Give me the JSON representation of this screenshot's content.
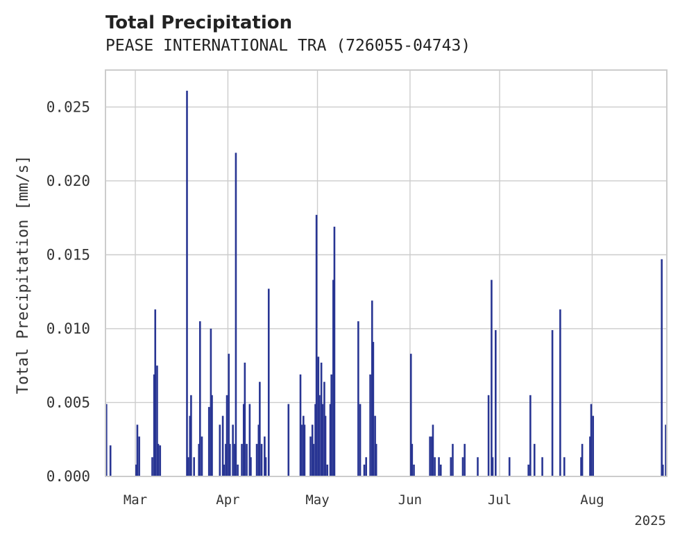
{
  "chart_data": {
    "type": "bar",
    "title": "Total Precipitation",
    "subtitle": "PEASE INTERNATIONAL TRA (726055-04743)",
    "ylabel": "Total Precipitation [mm/s]",
    "xlabel": "",
    "year_label": "2025",
    "x_range": [
      "2025-02-19",
      "2025-08-26"
    ],
    "ylim": [
      0,
      0.0275
    ],
    "grid": true,
    "series_color": "#283593",
    "yticks": [
      {
        "value": 0.0,
        "label": "0.000"
      },
      {
        "value": 0.005,
        "label": "0.005"
      },
      {
        "value": 0.01,
        "label": "0.010"
      },
      {
        "value": 0.015,
        "label": "0.015"
      },
      {
        "value": 0.02,
        "label": "0.020"
      },
      {
        "value": 0.025,
        "label": "0.025"
      }
    ],
    "xticks": [
      {
        "date": "2025-03-01",
        "label": "Mar"
      },
      {
        "date": "2025-04-01",
        "label": "Apr"
      },
      {
        "date": "2025-05-01",
        "label": "May"
      },
      {
        "date": "2025-06-01",
        "label": "Jun"
      },
      {
        "date": "2025-07-01",
        "label": "Jul"
      },
      {
        "date": "2025-08-01",
        "label": "Aug"
      }
    ],
    "series": [
      {
        "points": [
          [
            "2025-02-19",
            0.0049
          ],
          [
            "2025-02-20",
            0.0021
          ],
          [
            "2025-03-01",
            0.0008
          ],
          [
            "2025-03-01",
            0.0035
          ],
          [
            "2025-03-02",
            0.0027
          ],
          [
            "2025-03-06",
            0.0013
          ],
          [
            "2025-03-07",
            0.0069
          ],
          [
            "2025-03-07",
            0.0113
          ],
          [
            "2025-03-08",
            0.0075
          ],
          [
            "2025-03-08",
            0.0022
          ],
          [
            "2025-03-09",
            0.0021
          ],
          [
            "2025-03-18",
            0.0013
          ],
          [
            "2025-03-18",
            0.0261
          ],
          [
            "2025-03-19",
            0.0055
          ],
          [
            "2025-03-19",
            0.0041
          ],
          [
            "2025-03-20",
            0.0013
          ],
          [
            "2025-03-22",
            0.0022
          ],
          [
            "2025-03-22",
            0.0105
          ],
          [
            "2025-03-23",
            0.0027
          ],
          [
            "2025-03-25",
            0.0047
          ],
          [
            "2025-03-26",
            0.01
          ],
          [
            "2025-03-26",
            0.0055
          ],
          [
            "2025-03-29",
            0.0035
          ],
          [
            "2025-03-30",
            0.0008
          ],
          [
            "2025-03-30",
            0.0041
          ],
          [
            "2025-03-31",
            0.0055
          ],
          [
            "2025-03-31",
            0.0022
          ],
          [
            "2025-04-01",
            0.0022
          ],
          [
            "2025-04-01",
            0.0083
          ],
          [
            "2025-04-02",
            0.0035
          ],
          [
            "2025-04-03",
            0.0022
          ],
          [
            "2025-04-03",
            0.0219
          ],
          [
            "2025-04-04",
            0.0008
          ],
          [
            "2025-04-05",
            0.0022
          ],
          [
            "2025-04-06",
            0.0049
          ],
          [
            "2025-04-06",
            0.0077
          ],
          [
            "2025-04-07",
            0.0022
          ],
          [
            "2025-04-08",
            0.0013
          ],
          [
            "2025-04-08",
            0.0049
          ],
          [
            "2025-04-10",
            0.0022
          ],
          [
            "2025-04-11",
            0.0035
          ],
          [
            "2025-04-11",
            0.0064
          ],
          [
            "2025-04-12",
            0.0022
          ],
          [
            "2025-04-13",
            0.0013
          ],
          [
            "2025-04-13",
            0.0027
          ],
          [
            "2025-04-14",
            0.0127
          ],
          [
            "2025-04-21",
            0.0049
          ],
          [
            "2025-04-25",
            0.0035
          ],
          [
            "2025-04-25",
            0.0069
          ],
          [
            "2025-04-26",
            0.0035
          ],
          [
            "2025-04-26",
            0.0041
          ],
          [
            "2025-04-28",
            0.0027
          ],
          [
            "2025-04-29",
            0.0035
          ],
          [
            "2025-04-29",
            0.0022
          ],
          [
            "2025-04-30",
            0.0049
          ],
          [
            "2025-04-30",
            0.0177
          ],
          [
            "2025-05-01",
            0.0081
          ],
          [
            "2025-05-01",
            0.0055
          ],
          [
            "2025-05-02",
            0.0077
          ],
          [
            "2025-05-02",
            0.0049
          ],
          [
            "2025-05-03",
            0.0064
          ],
          [
            "2025-05-03",
            0.0041
          ],
          [
            "2025-05-04",
            0.0008
          ],
          [
            "2025-05-05",
            0.0069
          ],
          [
            "2025-05-05",
            0.0049
          ],
          [
            "2025-05-06",
            0.0169
          ],
          [
            "2025-05-06",
            0.0133
          ],
          [
            "2025-05-14",
            0.0105
          ],
          [
            "2025-05-15",
            0.0049
          ],
          [
            "2025-05-16",
            0.0008
          ],
          [
            "2025-05-17",
            0.0013
          ],
          [
            "2025-05-18",
            0.0069
          ],
          [
            "2025-05-19",
            0.0119
          ],
          [
            "2025-05-19",
            0.0091
          ],
          [
            "2025-05-20",
            0.0041
          ],
          [
            "2025-05-20",
            0.0022
          ],
          [
            "2025-06-01",
            0.0083
          ],
          [
            "2025-06-01",
            0.0022
          ],
          [
            "2025-06-02",
            0.0008
          ],
          [
            "2025-06-07",
            0.0027
          ],
          [
            "2025-06-08",
            0.0027
          ],
          [
            "2025-06-08",
            0.0035
          ],
          [
            "2025-06-09",
            0.0013
          ],
          [
            "2025-06-10",
            0.0013
          ],
          [
            "2025-06-11",
            0.0008
          ],
          [
            "2025-06-14",
            0.0013
          ],
          [
            "2025-06-15",
            0.0022
          ],
          [
            "2025-06-18",
            0.0013
          ],
          [
            "2025-06-19",
            0.0022
          ],
          [
            "2025-06-23",
            0.0013
          ],
          [
            "2025-06-27",
            0.0055
          ],
          [
            "2025-06-28",
            0.0013
          ],
          [
            "2025-06-28",
            0.0133
          ],
          [
            "2025-06-29",
            0.0099
          ],
          [
            "2025-07-04",
            0.0013
          ],
          [
            "2025-07-10",
            0.0008
          ],
          [
            "2025-07-11",
            0.0055
          ],
          [
            "2025-07-12",
            0.0022
          ],
          [
            "2025-07-15",
            0.0013
          ],
          [
            "2025-07-18",
            0.0099
          ],
          [
            "2025-07-21",
            0.0113
          ],
          [
            "2025-07-22",
            0.0013
          ],
          [
            "2025-07-28",
            0.0013
          ],
          [
            "2025-07-28",
            0.0022
          ],
          [
            "2025-07-31",
            0.0027
          ],
          [
            "2025-07-31",
            0.0049
          ],
          [
            "2025-08-01",
            0.0041
          ],
          [
            "2025-08-24",
            0.0008
          ],
          [
            "2025-08-24",
            0.0147
          ],
          [
            "2025-08-25",
            0.0035
          ]
        ]
      }
    ]
  }
}
